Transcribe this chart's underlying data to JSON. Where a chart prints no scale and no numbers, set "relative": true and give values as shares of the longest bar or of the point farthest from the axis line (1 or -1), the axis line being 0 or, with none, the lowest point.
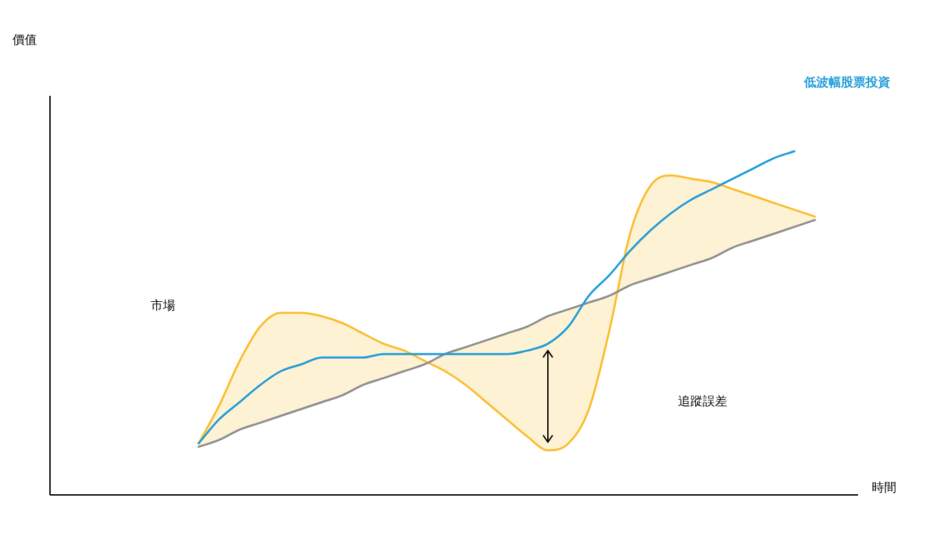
{
  "chart_data": {
    "type": "line",
    "relative": true,
    "xlabel": "時間",
    "marker": "none",
    "line_style": "solid",
    "categories": [
      null,
      null,
      null,
      null,
      null,
      null,
      null,
      null,
      null,
      null,
      null,
      null,
      null,
      null,
      null,
      null,
      null,
      null,
      null,
      null,
      null,
      null,
      null,
      null,
      null,
      null,
      null,
      null,
      null,
      null,
      null
    ],
    "annotations": [
      "價值",
      "市場",
      "追蹤誤差"
    ],
    "series": [
      {
        "color": "#fbbc2c",
        "values": [
          0.15,
          0.26,
          0.39,
          0.49,
          0.53,
          0.53,
          0.52,
          0.5,
          0.47,
          0.44,
          0.42,
          0.39,
          0.36,
          0.32,
          0.27,
          0.22,
          0.17,
          0.13,
          0.15,
          0.25,
          0.48,
          0.76,
          0.9,
          0.93,
          0.92,
          0.91,
          0.89,
          0.87,
          0.85,
          0.83,
          0.81
        ],
        "lower": [
          0.14,
          0.16,
          0.19,
          0.21,
          0.23,
          0.25,
          0.27,
          0.29,
          0.32,
          0.34,
          0.36,
          0.38,
          0.41,
          0.43,
          0.45,
          0.47,
          0.49,
          0.52,
          0.54,
          0.56,
          0.58,
          0.61,
          0.63,
          0.65,
          0.67,
          0.69,
          0.72,
          0.74,
          0.76,
          0.78,
          0.8
        ],
        "upper": [
          0.15,
          0.26,
          0.39,
          0.49,
          0.53,
          0.53,
          0.52,
          0.5,
          0.47,
          0.44,
          0.42,
          0.39,
          0.36,
          0.32,
          0.27,
          0.22,
          0.17,
          0.13,
          0.15,
          0.25,
          0.48,
          0.76,
          0.9,
          0.93,
          0.92,
          0.91,
          0.89,
          0.87,
          0.85,
          0.83,
          0.81
        ]
      },
      {
        "type": "line",
        "color": "#8c8c8c",
        "values": [
          0.14,
          0.16,
          0.19,
          0.21,
          0.23,
          0.25,
          0.27,
          0.29,
          0.32,
          0.34,
          0.36,
          0.38,
          0.41,
          0.43,
          0.45,
          0.47,
          0.49,
          0.52,
          0.54,
          0.56,
          0.58,
          0.61,
          0.63,
          0.65,
          0.67,
          0.69,
          0.72,
          0.74,
          0.76,
          0.78,
          0.8
        ]
      },
      {
        "name": "低波幅股票投資",
        "color": "#1e9bd7",
        "values": [
          0.15,
          0.22,
          0.27,
          0.32,
          0.36,
          0.38,
          0.4,
          0.4,
          0.4,
          0.41,
          0.41,
          0.41,
          0.41,
          0.41,
          0.41,
          0.41,
          0.42,
          0.44,
          0.49,
          0.58,
          0.64,
          0.71,
          0.77,
          0.82,
          0.86,
          0.89,
          0.92,
          0.95,
          0.98,
          1.0,
          null
        ]
      }
    ]
  }
}
